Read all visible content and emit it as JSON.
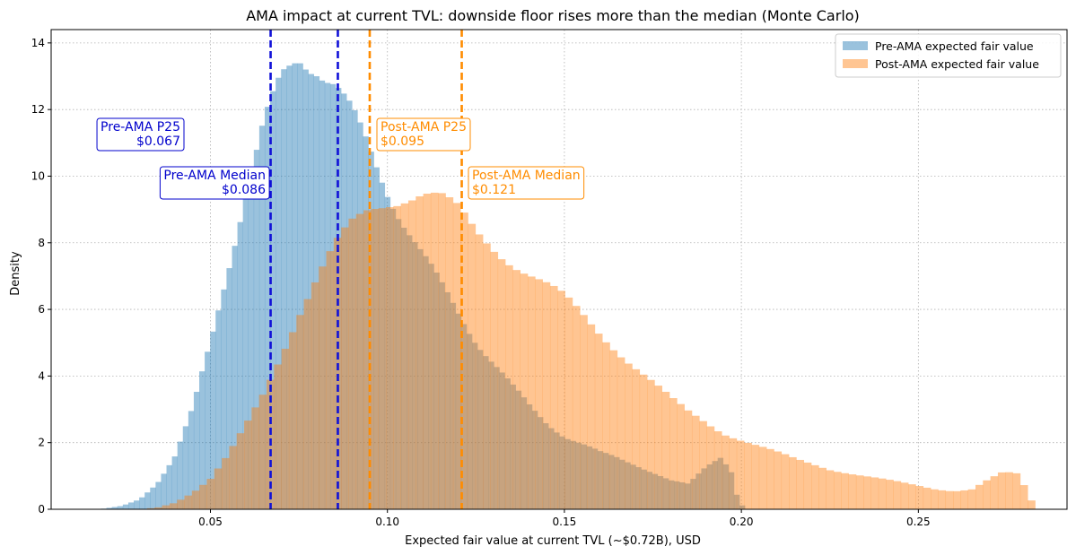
{
  "chart_data": {
    "type": "bar",
    "title": "AMA impact at current TVL: downside floor rises more than the median (Monte Carlo)",
    "xlabel": "Expected fair value at current TVL (~$0.72B), USD",
    "ylabel": "Density",
    "xlim": [
      0.005,
      0.292
    ],
    "ylim": [
      0,
      14.4
    ],
    "x_ticks": [
      0.05,
      0.1,
      0.15,
      0.2,
      0.25
    ],
    "x_tick_labels": [
      "0.05",
      "0.10",
      "0.15",
      "0.20",
      "0.25"
    ],
    "y_ticks": [
      0,
      2,
      4,
      6,
      8,
      10,
      12,
      14
    ],
    "y_tick_labels": [
      "0",
      "2",
      "4",
      "6",
      "8",
      "10",
      "12",
      "14"
    ],
    "grid": true,
    "legend_position": "top-right",
    "series": [
      {
        "name": "Pre-AMA expected fair value",
        "color": "#1f77b4",
        "alpha": 0.45,
        "x_min": 0.016,
        "x_max": 0.201,
        "density_profile": [
          [
            0.016,
            0.0
          ],
          [
            0.02,
            0.02
          ],
          [
            0.025,
            0.1
          ],
          [
            0.03,
            0.3
          ],
          [
            0.035,
            0.8
          ],
          [
            0.04,
            1.6
          ],
          [
            0.045,
            3.0
          ],
          [
            0.05,
            5.0
          ],
          [
            0.055,
            7.3
          ],
          [
            0.06,
            9.6
          ],
          [
            0.065,
            11.5
          ],
          [
            0.07,
            12.8
          ],
          [
            0.075,
            13.55
          ],
          [
            0.08,
            13.4
          ],
          [
            0.085,
            12.8
          ],
          [
            0.09,
            11.8
          ],
          [
            0.095,
            10.7
          ],
          [
            0.1,
            9.6
          ],
          [
            0.105,
            8.6
          ],
          [
            0.11,
            7.6
          ],
          [
            0.115,
            6.7
          ],
          [
            0.12,
            5.9
          ],
          [
            0.125,
            5.1
          ],
          [
            0.13,
            4.4
          ],
          [
            0.135,
            3.7
          ],
          [
            0.14,
            3.1
          ],
          [
            0.145,
            2.6
          ],
          [
            0.15,
            2.2
          ],
          [
            0.155,
            1.95
          ],
          [
            0.16,
            1.7
          ],
          [
            0.165,
            1.55
          ],
          [
            0.17,
            1.35
          ],
          [
            0.175,
            1.1
          ],
          [
            0.18,
            0.85
          ],
          [
            0.185,
            0.75
          ],
          [
            0.19,
            1.3
          ],
          [
            0.194,
            1.6
          ],
          [
            0.197,
            1.2
          ],
          [
            0.199,
            0.3
          ],
          [
            0.201,
            0.0
          ]
        ]
      },
      {
        "name": "Post-AMA expected fair value",
        "color": "#ff7f0e",
        "alpha": 0.45,
        "x_min": 0.03,
        "x_max": 0.283,
        "density_profile": [
          [
            0.03,
            0.0
          ],
          [
            0.035,
            0.05
          ],
          [
            0.04,
            0.2
          ],
          [
            0.045,
            0.5
          ],
          [
            0.05,
            0.9
          ],
          [
            0.055,
            1.6
          ],
          [
            0.06,
            2.5
          ],
          [
            0.065,
            3.5
          ],
          [
            0.07,
            4.7
          ],
          [
            0.075,
            5.9
          ],
          [
            0.08,
            6.9
          ],
          [
            0.085,
            7.8
          ],
          [
            0.09,
            8.5
          ],
          [
            0.095,
            9.0
          ],
          [
            0.1,
            9.3
          ],
          [
            0.105,
            9.45
          ],
          [
            0.11,
            9.5
          ],
          [
            0.115,
            9.3
          ],
          [
            0.12,
            8.9
          ],
          [
            0.125,
            8.3
          ],
          [
            0.13,
            7.9
          ],
          [
            0.135,
            7.5
          ],
          [
            0.14,
            7.1
          ],
          [
            0.145,
            6.7
          ],
          [
            0.15,
            6.3
          ],
          [
            0.155,
            5.8
          ],
          [
            0.16,
            5.3
          ],
          [
            0.165,
            4.8
          ],
          [
            0.17,
            4.3
          ],
          [
            0.175,
            3.8
          ],
          [
            0.18,
            3.3
          ],
          [
            0.185,
            2.9
          ],
          [
            0.19,
            2.6
          ],
          [
            0.195,
            2.3
          ],
          [
            0.2,
            2.1
          ],
          [
            0.205,
            1.9
          ],
          [
            0.21,
            1.7
          ],
          [
            0.215,
            1.5
          ],
          [
            0.22,
            1.35
          ],
          [
            0.225,
            1.2
          ],
          [
            0.23,
            1.1
          ],
          [
            0.235,
            1.0
          ],
          [
            0.24,
            0.9
          ],
          [
            0.245,
            0.8
          ],
          [
            0.25,
            0.7
          ],
          [
            0.255,
            0.6
          ],
          [
            0.26,
            0.55
          ],
          [
            0.265,
            0.6
          ],
          [
            0.27,
            0.9
          ],
          [
            0.274,
            1.1
          ],
          [
            0.278,
            1.05
          ],
          [
            0.281,
            0.5
          ],
          [
            0.283,
            0.0
          ]
        ]
      }
    ],
    "markers": [
      {
        "series": "Pre-AMA",
        "value": 0.067,
        "label": "Pre-AMA P25",
        "value_label": "$0.067",
        "color": "#0000cc",
        "line_color": "#1010d8"
      },
      {
        "series": "Pre-AMA",
        "value": 0.086,
        "label": "Pre-AMA Median",
        "value_label": "$0.086",
        "color": "#0000cc",
        "line_color": "#1010d8"
      },
      {
        "series": "Post-AMA",
        "value": 0.095,
        "label": "Post-AMA P25",
        "value_label": "$0.095",
        "color": "#ff8c00",
        "line_color": "#ff8c00"
      },
      {
        "series": "Post-AMA",
        "value": 0.121,
        "label": "Post-AMA Median",
        "value_label": "$0.121",
        "color": "#ff8c00",
        "line_color": "#ff8c00"
      }
    ]
  }
}
